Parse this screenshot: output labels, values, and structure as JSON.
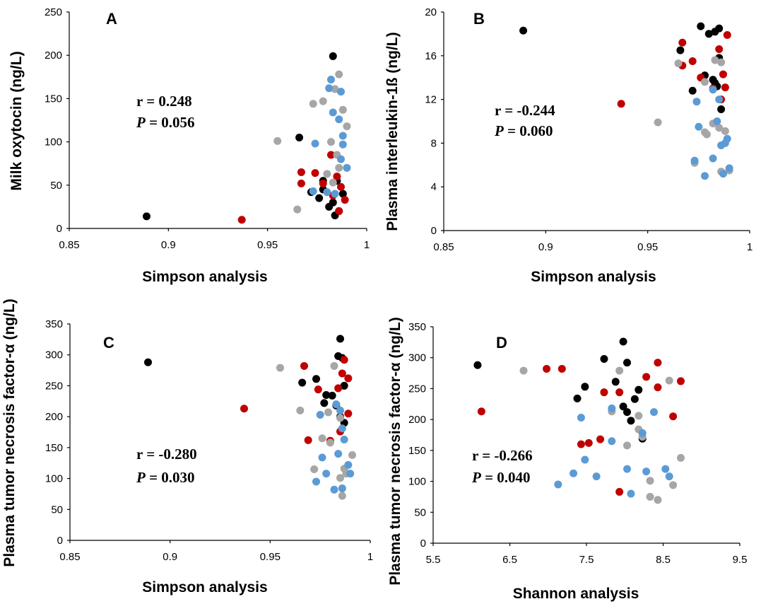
{
  "colors": {
    "black": "#000000",
    "gray": "#a6a6a6",
    "red": "#c00000",
    "blue": "#5b9bd5"
  },
  "chart_data": [
    {
      "type": "scatter",
      "panel": "A",
      "xlabel": "Simpson analysis",
      "ylabel": "Milk oxytocin (ng/L)",
      "xlim": [
        0.85,
        1
      ],
      "ylim": [
        0,
        250
      ],
      "xticks": [
        "0.85",
        "0.9",
        "0.95",
        "1"
      ],
      "yticks": [
        "0",
        "50",
        "100",
        "150",
        "200",
        "250"
      ],
      "stat_r": "r = 0.248",
      "stat_p_label": "P",
      "stat_p_value": " = 0.056",
      "series": [
        {
          "color": "black",
          "points": [
            [
              0.889,
              14
            ],
            [
              0.983,
              199
            ],
            [
              0.966,
              105
            ],
            [
              0.985,
              55
            ],
            [
              0.976,
              35
            ],
            [
              0.978,
              45
            ],
            [
              0.981,
              25
            ],
            [
              0.983,
              30
            ],
            [
              0.984,
              15
            ],
            [
              0.986,
              20
            ],
            [
              0.972,
              42
            ],
            [
              0.978,
              55
            ],
            [
              0.988,
              40
            ]
          ]
        },
        {
          "color": "red",
          "points": [
            [
              0.937,
              10
            ],
            [
              0.967,
              65
            ],
            [
              0.967,
              52
            ],
            [
              0.974,
              64
            ],
            [
              0.978,
              52
            ],
            [
              0.982,
              85
            ],
            [
              0.983,
              38
            ],
            [
              0.985,
              60
            ],
            [
              0.987,
              48
            ],
            [
              0.989,
              33
            ],
            [
              0.986,
              20
            ]
          ]
        },
        {
          "color": "gray",
          "points": [
            [
              0.955,
              101
            ],
            [
              0.965,
              22
            ],
            [
              0.973,
              144
            ],
            [
              0.978,
              147
            ],
            [
              0.982,
              100
            ],
            [
              0.984,
              161
            ],
            [
              0.986,
              178
            ],
            [
              0.988,
              137
            ],
            [
              0.99,
              118
            ],
            [
              0.985,
              85
            ],
            [
              0.98,
              63
            ],
            [
              0.986,
              70
            ],
            [
              0.983,
              53
            ]
          ]
        },
        {
          "color": "blue",
          "points": [
            [
              0.982,
              172
            ],
            [
              0.981,
              162
            ],
            [
              0.987,
              158
            ],
            [
              0.983,
              134
            ],
            [
              0.986,
              126
            ],
            [
              0.988,
              107
            ],
            [
              0.988,
              97
            ],
            [
              0.974,
              98
            ],
            [
              0.987,
              80
            ],
            [
              0.99,
              70
            ],
            [
              0.973,
              43
            ],
            [
              0.98,
              42
            ],
            [
              0.984,
              40
            ]
          ]
        }
      ]
    },
    {
      "type": "scatter",
      "panel": "B",
      "xlabel": "Simpson analysis",
      "ylabel": "Plasma  interleukin-1ß (ng/L)",
      "xlim": [
        0.85,
        1
      ],
      "ylim": [
        0,
        20
      ],
      "xticks": [
        "0.85",
        "0.9",
        "0.95",
        "1"
      ],
      "yticks": [
        "0",
        "4",
        "8",
        "12",
        "16",
        "20"
      ],
      "stat_r": "r = -0.244",
      "stat_p_label": "P",
      "stat_p_value": " = 0.060",
      "series": [
        {
          "color": "black",
          "points": [
            [
              0.889,
              18.3
            ],
            [
              0.976,
              18.7
            ],
            [
              0.98,
              18.0
            ],
            [
              0.983,
              18.2
            ],
            [
              0.985,
              18.5
            ],
            [
              0.966,
              16.5
            ],
            [
              0.985,
              15.8
            ],
            [
              0.978,
              14.2
            ],
            [
              0.982,
              13.8
            ],
            [
              0.983,
              13.5
            ],
            [
              0.972,
              12.8
            ],
            [
              0.986,
              11.1
            ],
            [
              0.984,
              13.2
            ]
          ]
        },
        {
          "color": "red",
          "points": [
            [
              0.937,
              11.6
            ],
            [
              0.967,
              17.2
            ],
            [
              0.967,
              15.1
            ],
            [
              0.972,
              15.5
            ],
            [
              0.976,
              14.0
            ],
            [
              0.982,
              13.0
            ],
            [
              0.985,
              16.6
            ],
            [
              0.987,
              14.3
            ],
            [
              0.989,
              17.9
            ],
            [
              0.988,
              13.1
            ],
            [
              0.986,
              12.0
            ]
          ]
        },
        {
          "color": "gray",
          "points": [
            [
              0.955,
              9.9
            ],
            [
              0.965,
              15.3
            ],
            [
              0.973,
              6.2
            ],
            [
              0.978,
              9.0
            ],
            [
              0.979,
              8.8
            ],
            [
              0.982,
              9.8
            ],
            [
              0.985,
              9.4
            ],
            [
              0.988,
              9.1
            ],
            [
              0.99,
              5.5
            ],
            [
              0.986,
              5.4
            ],
            [
              0.978,
              13.6
            ],
            [
              0.983,
              15.6
            ],
            [
              0.986,
              15.4
            ]
          ]
        },
        {
          "color": "blue",
          "points": [
            [
              0.973,
              6.4
            ],
            [
              0.975,
              9.5
            ],
            [
              0.974,
              11.8
            ],
            [
              0.978,
              5.0
            ],
            [
              0.982,
              6.6
            ],
            [
              0.982,
              12.9
            ],
            [
              0.984,
              10.0
            ],
            [
              0.986,
              7.8
            ],
            [
              0.988,
              8.0
            ],
            [
              0.989,
              8.4
            ],
            [
              0.987,
              5.2
            ],
            [
              0.99,
              5.7
            ],
            [
              0.985,
              12.0
            ]
          ]
        }
      ]
    },
    {
      "type": "scatter",
      "panel": "C",
      "xlabel": "Simpson analysis",
      "ylabel": "Plasma  tumor necrosis factor-α (ng/L)",
      "xlim": [
        0.85,
        1
      ],
      "ylim": [
        0,
        350
      ],
      "xticks": [
        "0.85",
        "0.9",
        "0.95",
        "1"
      ],
      "yticks": [
        "0",
        "50",
        "100",
        "150",
        "200",
        "250",
        "300",
        "350"
      ],
      "stat_r": "r = -0.280",
      "stat_p_label": "P",
      "stat_p_value": " = 0.030",
      "series": [
        {
          "color": "black",
          "points": [
            [
              0.889,
              288
            ],
            [
              0.985,
              326
            ],
            [
              0.984,
              298
            ],
            [
              0.986,
              295
            ],
            [
              0.973,
              261
            ],
            [
              0.966,
              255
            ],
            [
              0.987,
              250
            ],
            [
              0.978,
              235
            ],
            [
              0.981,
              234
            ],
            [
              0.977,
              222
            ],
            [
              0.983,
              218
            ],
            [
              0.985,
              200
            ],
            [
              0.987,
              190
            ]
          ]
        },
        {
          "color": "red",
          "points": [
            [
              0.937,
              213
            ],
            [
              0.967,
              282
            ],
            [
              0.987,
              292
            ],
            [
              0.986,
              270
            ],
            [
              0.989,
              262
            ],
            [
              0.984,
              246
            ],
            [
              0.974,
              244
            ],
            [
              0.989,
              205
            ],
            [
              0.969,
              162
            ],
            [
              0.98,
              161
            ],
            [
              0.985,
              176
            ]
          ]
        },
        {
          "color": "gray",
          "points": [
            [
              0.955,
              279
            ],
            [
              0.965,
              210
            ],
            [
              0.972,
              115
            ],
            [
              0.976,
              165
            ],
            [
              0.979,
              207
            ],
            [
              0.982,
              282
            ],
            [
              0.985,
              198
            ],
            [
              0.988,
              108
            ],
            [
              0.991,
              138
            ],
            [
              0.986,
              72
            ],
            [
              0.985,
              101
            ],
            [
              0.98,
              158
            ],
            [
              0.987,
              116
            ]
          ]
        },
        {
          "color": "blue",
          "points": [
            [
              0.973,
              95
            ],
            [
              0.975,
              203
            ],
            [
              0.976,
              134
            ],
            [
              0.978,
              108
            ],
            [
              0.982,
              82
            ],
            [
              0.983,
              220
            ],
            [
              0.985,
              210
            ],
            [
              0.986,
              181
            ],
            [
              0.987,
              163
            ],
            [
              0.989,
              122
            ],
            [
              0.99,
              108
            ],
            [
              0.986,
              84
            ],
            [
              0.984,
              140
            ]
          ]
        }
      ]
    },
    {
      "type": "scatter",
      "panel": "D",
      "xlabel": "Shannon analysis",
      "ylabel": "Plasma  tumor necrosis factor-α (ng/L)",
      "xlim": [
        5.5,
        9.5
      ],
      "ylim": [
        0,
        350
      ],
      "xticks": [
        "5.5",
        "6.5",
        "7.5",
        "8.5",
        "9.5"
      ],
      "yticks": [
        "0",
        "50",
        "100",
        "150",
        "200",
        "250",
        "300",
        "350"
      ],
      "stat_r": "r = -0.266",
      "stat_p_label": "P",
      "stat_p_value": " = 0.040",
      "series": [
        {
          "color": "black",
          "points": [
            [
              6.08,
              288
            ],
            [
              7.98,
              326
            ],
            [
              7.73,
              298
            ],
            [
              8.03,
              292
            ],
            [
              7.48,
              253
            ],
            [
              7.88,
              261
            ],
            [
              8.18,
              248
            ],
            [
              7.38,
              234
            ],
            [
              8.13,
              233
            ],
            [
              7.98,
              221
            ],
            [
              8.03,
              212
            ],
            [
              8.08,
              198
            ],
            [
              8.23,
              169
            ]
          ]
        },
        {
          "color": "red",
          "points": [
            [
              6.13,
              213
            ],
            [
              6.98,
              282
            ],
            [
              7.18,
              282
            ],
            [
              8.43,
              292
            ],
            [
              8.28,
              269
            ],
            [
              8.73,
              262
            ],
            [
              8.43,
              252
            ],
            [
              7.73,
              244
            ],
            [
              7.93,
              244
            ],
            [
              8.63,
              205
            ],
            [
              7.68,
              168
            ],
            [
              7.53,
              162
            ],
            [
              7.43,
              160
            ],
            [
              7.93,
              83
            ]
          ]
        },
        {
          "color": "gray",
          "points": [
            [
              6.68,
              279
            ],
            [
              7.93,
              279
            ],
            [
              8.58,
              263
            ],
            [
              7.83,
              213
            ],
            [
              8.18,
              206
            ],
            [
              8.18,
              184
            ],
            [
              8.23,
              172
            ],
            [
              8.03,
              158
            ],
            [
              8.33,
              101
            ],
            [
              8.43,
              70
            ],
            [
              8.63,
              94
            ],
            [
              8.73,
              138
            ],
            [
              8.33,
              75
            ]
          ]
        },
        {
          "color": "blue",
          "points": [
            [
              7.13,
              95
            ],
            [
              7.33,
              113
            ],
            [
              7.48,
              135
            ],
            [
              7.43,
              203
            ],
            [
              7.63,
              108
            ],
            [
              7.83,
              218
            ],
            [
              7.83,
              165
            ],
            [
              8.03,
              120
            ],
            [
              8.08,
              80
            ],
            [
              8.28,
              116
            ],
            [
              8.38,
              212
            ],
            [
              8.53,
              120
            ],
            [
              8.58,
              108
            ],
            [
              8.23,
              178
            ]
          ]
        }
      ]
    }
  ]
}
